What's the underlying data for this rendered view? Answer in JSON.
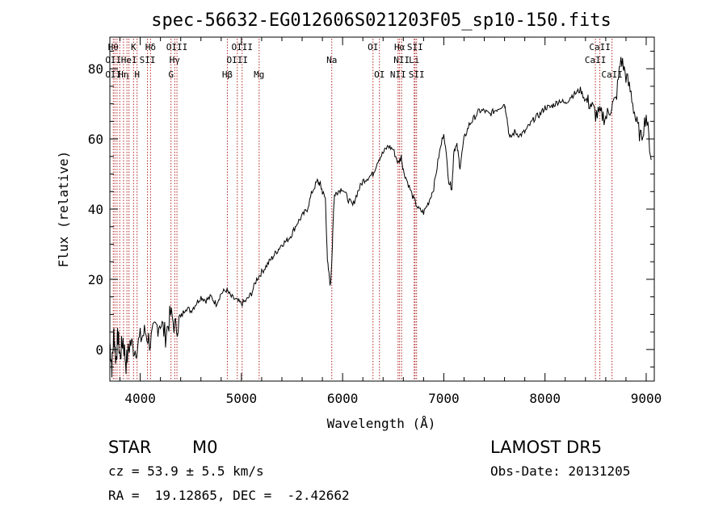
{
  "chart_data": {
    "type": "line",
    "title": "spec-56632-EG012606S021203F05_sp10-150.fits",
    "xlabel": "Wavelength (Å)",
    "ylabel": "Flux (relative)",
    "xlim": [
      3700,
      9080
    ],
    "ylim": [
      -9,
      89
    ],
    "xticks": [
      4000,
      5000,
      6000,
      7000,
      8000,
      9000
    ],
    "yticks": [
      0,
      20,
      40,
      60,
      80
    ],
    "grid": false,
    "series": [
      {
        "x": [
          3700,
          3720,
          3740,
          3760,
          3780,
          3800,
          3830,
          3860,
          3900,
          3950,
          4000,
          4050,
          4100,
          4150,
          4200,
          4250,
          4300,
          4350,
          4400,
          4450,
          4500,
          4550,
          4600,
          4650,
          4700,
          4750,
          4800,
          4850,
          4900,
          4950,
          5000,
          5050,
          5100,
          5150,
          5200,
          5250,
          5300,
          5350,
          5400,
          5450,
          5500,
          5550,
          5600,
          5650,
          5700,
          5750,
          5780,
          5800,
          5830,
          5850,
          5880,
          5900,
          5910,
          5920,
          5950,
          6000,
          6050,
          6100,
          6150,
          6200,
          6250,
          6300,
          6350,
          6400,
          6450,
          6500,
          6550,
          6580,
          6600,
          6650,
          6700,
          6750,
          6800,
          6850,
          6900,
          6950,
          7000,
          7050,
          7080,
          7100,
          7130,
          7160,
          7200,
          7250,
          7300,
          7350,
          7400,
          7450,
          7500,
          7550,
          7600,
          7620,
          7650,
          7700,
          7750,
          7800,
          7850,
          7900,
          7950,
          8000,
          8050,
          8100,
          8150,
          8200,
          8250,
          8300,
          8350,
          8400,
          8450,
          8500,
          8550,
          8600,
          8650,
          8700,
          8750,
          8800,
          8850,
          8900,
          8950,
          9000,
          9050
        ],
        "y": [
          2,
          -5,
          5,
          -3,
          4,
          -2,
          3,
          -4,
          2,
          0,
          3,
          5,
          2,
          6,
          8,
          4,
          10,
          6,
          9,
          12,
          11,
          13,
          15,
          14,
          15,
          13,
          16,
          17,
          15,
          14,
          13,
          14,
          16,
          20,
          22,
          24,
          26,
          28,
          30,
          31,
          33,
          36,
          38,
          40,
          45,
          48,
          47,
          45,
          43,
          25,
          18,
          30,
          40,
          44,
          45,
          46,
          43,
          41,
          45,
          48,
          49,
          50,
          54,
          56,
          58,
          57,
          53,
          55,
          51,
          47,
          43,
          40,
          39,
          42,
          46,
          55,
          62,
          48,
          46,
          57,
          58,
          52,
          60,
          64,
          66,
          68,
          68,
          67,
          68,
          69,
          70,
          67,
          60,
          62,
          61,
          62,
          64,
          66,
          67,
          69,
          69,
          70,
          71,
          70,
          72,
          73,
          74,
          71,
          70,
          67,
          67,
          66,
          69,
          71,
          83,
          78,
          73,
          65,
          60,
          67,
          54
        ]
      }
    ],
    "lines": [
      {
        "x": 3734,
        "top": "Hθ",
        "mid": "OII",
        "low": "OII"
      },
      {
        "x": 3750,
        "top": "",
        "mid": "",
        "low": ""
      },
      {
        "x": 3771,
        "top": "",
        "mid": "",
        "low": ""
      },
      {
        "x": 3798,
        "top": "",
        "mid": "",
        "low": ""
      },
      {
        "x": 3835,
        "top": "",
        "mid": "",
        "low": "Hη"
      },
      {
        "x": 3869,
        "top": "",
        "mid": "",
        "low": ""
      },
      {
        "x": 3889,
        "top": "",
        "mid": "HeI",
        "low": ""
      },
      {
        "x": 3934,
        "top": "K",
        "mid": "",
        "low": ""
      },
      {
        "x": 3969,
        "top": "",
        "mid": "",
        "low": "H"
      },
      {
        "x": 4072,
        "top": "",
        "mid": "SII",
        "low": ""
      },
      {
        "x": 4102,
        "top": "Hδ",
        "mid": "",
        "low": ""
      },
      {
        "x": 4304,
        "top": "",
        "mid": "",
        "low": "G"
      },
      {
        "x": 4341,
        "top": "",
        "mid": "Hγ",
        "low": ""
      },
      {
        "x": 4363,
        "top": "OIII",
        "mid": "",
        "low": ""
      },
      {
        "x": 4861,
        "top": "",
        "mid": "",
        "low": "Hβ"
      },
      {
        "x": 4959,
        "top": "",
        "mid": "OIII",
        "low": ""
      },
      {
        "x": 5007,
        "top": "OIII",
        "mid": "",
        "low": ""
      },
      {
        "x": 5175,
        "top": "",
        "mid": "",
        "low": "Mg"
      },
      {
        "x": 5893,
        "top": "",
        "mid": "Na",
        "low": ""
      },
      {
        "x": 6300,
        "top": "OI",
        "mid": "",
        "low": ""
      },
      {
        "x": 6364,
        "top": "",
        "mid": "",
        "low": "OI"
      },
      {
        "x": 6548,
        "top": "",
        "mid": "",
        "low": "NII"
      },
      {
        "x": 6563,
        "top": "Hα",
        "mid": "",
        "low": ""
      },
      {
        "x": 6583,
        "top": "",
        "mid": "NII",
        "low": ""
      },
      {
        "x": 6707,
        "top": "",
        "mid": "Li",
        "low": ""
      },
      {
        "x": 6716,
        "top": "SII",
        "mid": "",
        "low": ""
      },
      {
        "x": 6731,
        "top": "",
        "mid": "",
        "low": "SII"
      },
      {
        "x": 8498,
        "top": "",
        "mid": "CaII",
        "low": ""
      },
      {
        "x": 8542,
        "top": "CaII",
        "mid": "",
        "low": ""
      },
      {
        "x": 8662,
        "top": "",
        "mid": "",
        "low": "CaII"
      }
    ],
    "colors": {
      "spectrum": "#000000",
      "lines": "#b22222",
      "axes": "#000000"
    }
  },
  "info": {
    "type_label": "STAR",
    "subclass": "M0",
    "survey": "LAMOST DR5",
    "cz": "cz = 53.9 ± 5.5 km/s",
    "obs_date": "Obs-Date: 20131205",
    "coords": "RA =  19.12865, DEC =  -2.42662"
  }
}
